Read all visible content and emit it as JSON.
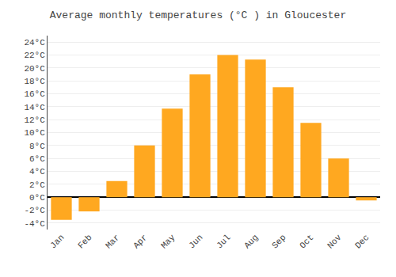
{
  "chart_data": {
    "type": "bar",
    "title": "Average monthly temperatures (°C ) in Gloucester",
    "categories": [
      "Jan",
      "Feb",
      "Mar",
      "Apr",
      "May",
      "Jun",
      "Jul",
      "Aug",
      "Sep",
      "Oct",
      "Nov",
      "Dec"
    ],
    "values": [
      -3.5,
      -2.2,
      2.5,
      8.0,
      13.7,
      19.0,
      22.0,
      21.3,
      17.0,
      11.5,
      6.0,
      -0.5
    ],
    "color": "#FFA820",
    "ylim": [
      -5,
      25
    ],
    "yticks": [
      {
        "value": -4,
        "label": "-4°C"
      },
      {
        "value": -2,
        "label": "-2°C"
      },
      {
        "value": 0,
        "label": "0°C"
      },
      {
        "value": 2,
        "label": "2°C"
      },
      {
        "value": 4,
        "label": "4°C"
      },
      {
        "value": 6,
        "label": "6°C"
      },
      {
        "value": 8,
        "label": "8°C"
      },
      {
        "value": 10,
        "label": "10°C"
      },
      {
        "value": 12,
        "label": "12°C"
      },
      {
        "value": 14,
        "label": "14°C"
      },
      {
        "value": 16,
        "label": "16°C"
      },
      {
        "value": 18,
        "label": "18°C"
      },
      {
        "value": 20,
        "label": "20°C"
      },
      {
        "value": 22,
        "label": "22°C"
      },
      {
        "value": 24,
        "label": "24°C"
      }
    ],
    "grid": true
  }
}
